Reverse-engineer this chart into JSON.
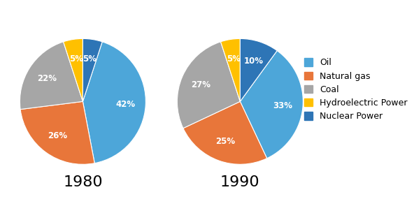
{
  "pie1_label": "1980",
  "pie2_label": "1990",
  "categories": [
    "Oil",
    "Natural gas",
    "Coal",
    "Hydroelectric Power",
    "Nuclear Power"
  ],
  "values_1980": [
    42,
    26,
    22,
    5,
    5
  ],
  "values_1990": [
    33,
    25,
    27,
    5,
    10
  ],
  "colors": [
    "#4DA6D9",
    "#E8763A",
    "#A6A6A6",
    "#FFC000",
    "#2E75B6"
  ],
  "title_fontsize": 16,
  "label_fontsize": 8.5,
  "legend_fontsize": 9,
  "background_color": "#FFFFFF",
  "startangle_1980": 72,
  "startangle_1990": 54,
  "pctdistance": 0.68
}
